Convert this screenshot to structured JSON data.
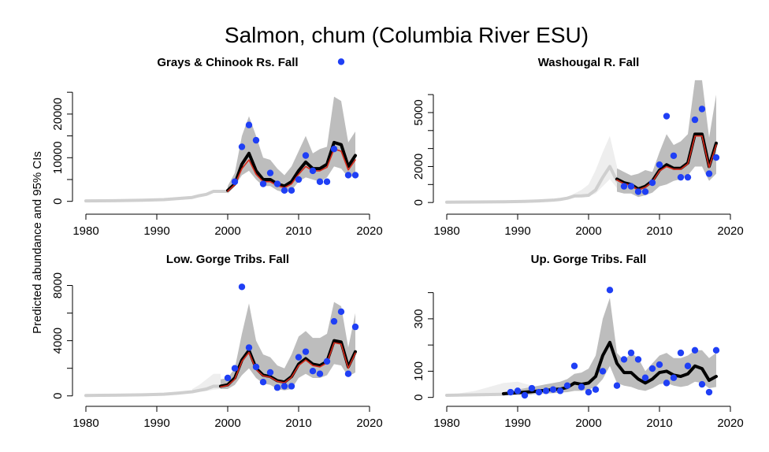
{
  "figure": {
    "title": "Salmon, chum (Columbia River ESU)",
    "ylabel": "Predicted abundance and 95% CIs"
  },
  "colors": {
    "hist_line": "#cfcfcf",
    "hist_band": "#eeeeee",
    "ci_band": "#bdbdbd",
    "estimate_line": "#000000",
    "fit_line": "#d62a1b",
    "observed_points": "#1f3ff5"
  },
  "chart_data": [
    {
      "type": "line",
      "title": "Grays & Chinook Rs. Fall",
      "xlabel": "",
      "ylabel": "",
      "xlim": [
        1979,
        2021
      ],
      "ylim": [
        -1500,
        29000
      ],
      "xticks": [
        1980,
        1990,
        2000,
        2010,
        2020
      ],
      "yticks": [
        0,
        5000,
        10000,
        15000,
        20000,
        25000
      ],
      "ytick_labels": [
        "0",
        "",
        "10000",
        "",
        "20000",
        ""
      ],
      "ytick_labels_alt": [
        "0",
        "5000",
        "10000",
        "15000",
        "20000",
        "25000"
      ],
      "historical_line": {
        "x": [
          1980,
          1984,
          1988,
          1991,
          1993,
          1995,
          1996,
          1997,
          1998,
          1999,
          2000
        ],
        "y": [
          100,
          150,
          250,
          400,
          650,
          900,
          1300,
          1600,
          2300,
          2300,
          2300
        ]
      },
      "historical_band": {
        "x": [],
        "lower": [],
        "upper": []
      },
      "ci_band": {
        "x": [
          2000,
          2001,
          2002,
          2003,
          2004,
          2005,
          2006,
          2007,
          2008,
          2009,
          2010,
          2011,
          2012,
          2013,
          2014,
          2015,
          2016,
          2017,
          2018
        ],
        "lower": [
          1800,
          3500,
          6000,
          7000,
          5000,
          3500,
          3500,
          2500,
          2000,
          2500,
          4500,
          5500,
          5000,
          4500,
          5500,
          8000,
          7500,
          5500,
          6000
        ],
        "upper": [
          3500,
          6500,
          15000,
          19500,
          15000,
          10000,
          9500,
          7500,
          6000,
          8000,
          11500,
          15000,
          11000,
          12000,
          12500,
          24000,
          23000,
          13500,
          16000
        ]
      },
      "estimate_line": {
        "x": [
          2000,
          2001,
          2002,
          2003,
          2004,
          2005,
          2006,
          2007,
          2008,
          2009,
          2010,
          2011,
          2012,
          2013,
          2014,
          2015,
          2016,
          2017,
          2018
        ],
        "y": [
          2500,
          4000,
          8500,
          11000,
          7000,
          5000,
          5000,
          4000,
          3500,
          4500,
          7000,
          9000,
          7500,
          7500,
          8500,
          13500,
          13000,
          8000,
          10500
        ]
      },
      "fit_line": {
        "x": [
          2000,
          2001,
          2002,
          2003,
          2004,
          2005,
          2006,
          2007,
          2008,
          2009,
          2010,
          2011,
          2012,
          2013,
          2014,
          2015,
          2016,
          2017,
          2018
        ],
        "y": [
          2300,
          3800,
          7500,
          9500,
          6200,
          4500,
          4500,
          3600,
          3100,
          4000,
          6200,
          8000,
          7000,
          7000,
          7800,
          12000,
          11500,
          7200,
          9500
        ]
      },
      "observed_points": {
        "x": [
          2001,
          2002,
          2003,
          2004,
          2005,
          2006,
          2007,
          2008,
          2009,
          2010,
          2011,
          2012,
          2013,
          2014,
          2015,
          2016,
          2017,
          2018
        ],
        "y": [
          4500,
          12500,
          17500,
          14000,
          4000,
          6500,
          4000,
          2500,
          2500,
          5000,
          10500,
          7000,
          4500,
          4500,
          12000,
          32000,
          6000,
          6000
        ]
      }
    },
    {
      "type": "line",
      "title": "Washougal R. Fall",
      "xlabel": "",
      "ylabel": "",
      "xlim": [
        1979,
        2021
      ],
      "ylim": [
        -300,
        7100
      ],
      "xticks": [
        1980,
        1990,
        2000,
        2010,
        2020
      ],
      "yticks": [
        0,
        1000,
        2000,
        3000,
        4000,
        5000,
        6000
      ],
      "ytick_labels": [
        "0",
        "",
        "2000",
        "",
        "",
        "5000",
        ""
      ],
      "historical_line": {
        "x": [
          1980,
          1984,
          1988,
          1991,
          1993,
          1995,
          1996,
          1997,
          1998,
          1999,
          2000,
          2001,
          2002,
          2003,
          2004
        ],
        "y": [
          20,
          30,
          40,
          60,
          90,
          130,
          170,
          240,
          360,
          370,
          400,
          700,
          1400,
          2000,
          1200
        ]
      },
      "historical_band": {
        "x": [
          1997,
          1998,
          1999,
          2000,
          2001,
          2002,
          2003,
          2004
        ],
        "lower": [
          200,
          300,
          300,
          350,
          500,
          900,
          1300,
          800
        ],
        "upper": [
          300,
          500,
          700,
          1000,
          1800,
          2800,
          3700,
          2000
        ]
      },
      "ci_band": {
        "x": [
          2004,
          2005,
          2006,
          2007,
          2008,
          2009,
          2010,
          2011,
          2012,
          2013,
          2014,
          2015,
          2016,
          2017,
          2018
        ],
        "lower": [
          600,
          500,
          500,
          300,
          400,
          550,
          900,
          1000,
          1200,
          1300,
          1500,
          2000,
          2000,
          1200,
          1600
        ],
        "upper": [
          1900,
          1700,
          1500,
          1600,
          1800,
          1700,
          2800,
          3800,
          3200,
          3400,
          3800,
          6800,
          6800,
          3600,
          6000
        ]
      },
      "estimate_line": {
        "x": [
          2004,
          2005,
          2006,
          2007,
          2008,
          2009,
          2010,
          2011,
          2012,
          2013,
          2014,
          2015,
          2016,
          2017,
          2018
        ],
        "y": [
          1300,
          1100,
          1000,
          750,
          900,
          1200,
          1800,
          2100,
          1900,
          1900,
          2200,
          3800,
          3800,
          2000,
          3300
        ]
      },
      "fit_line": {
        "x": [
          2004,
          2005,
          2006,
          2007,
          2008,
          2009,
          2010,
          2011,
          2012,
          2013,
          2014,
          2015,
          2016,
          2017,
          2018
        ],
        "y": [
          1250,
          1050,
          950,
          700,
          850,
          1150,
          1750,
          2000,
          1850,
          1850,
          2150,
          3700,
          3700,
          1950,
          3200
        ]
      },
      "observed_points": {
        "x": [
          2005,
          2006,
          2007,
          2008,
          2009,
          2010,
          2011,
          2012,
          2013,
          2014,
          2015,
          2016,
          2017,
          2018
        ],
        "y": [
          900,
          900,
          600,
          600,
          1100,
          2100,
          4800,
          2600,
          1400,
          1400,
          4600,
          5200,
          1600,
          2500
        ]
      }
    },
    {
      "type": "line",
      "title": "Low. Gorge Tribs. Fall",
      "xlabel": "",
      "ylabel": "",
      "xlim": [
        1979,
        2021
      ],
      "ylim": [
        -300,
        9000
      ],
      "xticks": [
        1980,
        1990,
        2000,
        2010,
        2020
      ],
      "yticks": [
        0,
        2000,
        4000,
        6000,
        8000
      ],
      "ytick_labels": [
        "0",
        "",
        "4000",
        "",
        "8000"
      ],
      "historical_line": {
        "x": [
          1980,
          1984,
          1988,
          1991,
          1993,
          1995,
          1996,
          1997,
          1998,
          1999
        ],
        "y": [
          30,
          50,
          80,
          120,
          200,
          300,
          400,
          500,
          700,
          700
        ]
      },
      "historical_band": {
        "x": [
          1995,
          1996,
          1997,
          1998,
          1999
        ],
        "lower": [
          250,
          300,
          350,
          450,
          500
        ],
        "upper": [
          500,
          800,
          1200,
          1600,
          1600
        ]
      },
      "ci_band": {
        "x": [
          1999,
          2000,
          2001,
          2002,
          2003,
          2004,
          2005,
          2006,
          2007,
          2008,
          2009,
          2010,
          2011,
          2012,
          2013,
          2014,
          2015,
          2016,
          2017,
          2018
        ],
        "lower": [
          500,
          500,
          800,
          1500,
          2000,
          1300,
          900,
          800,
          500,
          400,
          500,
          1300,
          1600,
          1300,
          1300,
          1500,
          2300,
          2200,
          1400,
          1700
        ],
        "upper": [
          1200,
          1300,
          2000,
          4500,
          6700,
          4000,
          3000,
          2800,
          2200,
          2000,
          3000,
          4300,
          4700,
          4200,
          4200,
          4500,
          6800,
          6500,
          3500,
          6000
        ]
      },
      "estimate_line": {
        "x": [
          1999,
          2000,
          2001,
          2002,
          2003,
          2004,
          2005,
          2006,
          2007,
          2008,
          2009,
          2010,
          2011,
          2012,
          2013,
          2014,
          2015,
          2016,
          2017,
          2018
        ],
        "y": [
          700,
          800,
          1300,
          2600,
          3300,
          2000,
          1500,
          1400,
          1100,
          1000,
          1400,
          2300,
          2700,
          2300,
          2200,
          2500,
          4000,
          3900,
          2100,
          3200
        ]
      },
      "fit_line": {
        "x": [
          1999,
          2000,
          2001,
          2002,
          2003,
          2004,
          2005,
          2006,
          2007,
          2008,
          2009,
          2010,
          2011,
          2012,
          2013,
          2014,
          2015,
          2016,
          2017,
          2018
        ],
        "y": [
          650,
          750,
          1200,
          2500,
          3150,
          1900,
          1450,
          1350,
          1050,
          950,
          1350,
          2200,
          2600,
          2200,
          2100,
          2400,
          3850,
          3750,
          2000,
          3100
        ]
      },
      "observed_points": {
        "x": [
          2000,
          2001,
          2002,
          2003,
          2004,
          2005,
          2006,
          2007,
          2008,
          2009,
          2010,
          2011,
          2012,
          2013,
          2014,
          2015,
          2016,
          2017,
          2018
        ],
        "y": [
          1300,
          2000,
          7900,
          3500,
          2100,
          1000,
          1700,
          600,
          700,
          700,
          2800,
          3200,
          1800,
          1600,
          2500,
          5400,
          6100,
          1600,
          5000
        ]
      }
    },
    {
      "type": "line",
      "title": "Up. Gorge Tribs. Fall",
      "xlabel": "",
      "ylabel": "",
      "xlim": [
        1979,
        2021
      ],
      "ylim": [
        -10,
        480
      ],
      "xticks": [
        1980,
        1990,
        2000,
        2010,
        2020
      ],
      "yticks": [
        0,
        100,
        200,
        300,
        400
      ],
      "ytick_labels": [
        "0",
        "100",
        "",
        "300",
        ""
      ],
      "historical_line": {
        "x": [
          1980,
          1984,
          1988
        ],
        "y": [
          8,
          10,
          12
        ]
      },
      "historical_band": {
        "x": [
          1980,
          1984,
          1988,
          1990,
          1992
        ],
        "lower": [
          5,
          6,
          8,
          8,
          8
        ],
        "upper": [
          8,
          25,
          55,
          60,
          45
        ]
      },
      "ci_band": {
        "x": [
          1988,
          1989,
          1990,
          1991,
          1992,
          1993,
          1994,
          1995,
          1996,
          1997,
          1998,
          1999,
          2000,
          2001,
          2002,
          2003,
          2004,
          2005,
          2006,
          2007,
          2008,
          2009,
          2010,
          2011,
          2012,
          2013,
          2014,
          2015,
          2016,
          2017,
          2018
        ],
        "lower": [
          8,
          10,
          10,
          10,
          12,
          14,
          15,
          16,
          18,
          20,
          25,
          25,
          30,
          40,
          70,
          120,
          55,
          45,
          40,
          30,
          25,
          35,
          50,
          55,
          45,
          40,
          45,
          60,
          55,
          35,
          40
        ],
        "upper": [
          20,
          25,
          30,
          35,
          40,
          45,
          50,
          55,
          60,
          70,
          90,
          95,
          110,
          160,
          300,
          380,
          170,
          140,
          170,
          150,
          100,
          130,
          160,
          170,
          150,
          150,
          160,
          180,
          180,
          150,
          170
        ]
      },
      "estimate_line": {
        "x": [
          1988,
          1989,
          1990,
          1991,
          1992,
          1993,
          1994,
          1995,
          1996,
          1997,
          1998,
          1999,
          2000,
          2001,
          2002,
          2003,
          2004,
          2005,
          2006,
          2007,
          2008,
          2009,
          2010,
          2011,
          2012,
          2013,
          2014,
          2015,
          2016,
          2017,
          2018
        ],
        "y": [
          14,
          16,
          18,
          20,
          22,
          25,
          27,
          30,
          32,
          38,
          55,
          50,
          55,
          80,
          160,
          210,
          130,
          95,
          95,
          70,
          55,
          70,
          95,
          100,
          85,
          80,
          90,
          120,
          110,
          65,
          80
        ]
      },
      "fit_line": {
        "x": [],
        "y": []
      },
      "observed_points": {
        "x": [
          1989,
          1990,
          1991,
          1992,
          1993,
          1994,
          1995,
          1996,
          1997,
          1998,
          1999,
          2000,
          2001,
          2002,
          2003,
          2004,
          2005,
          2006,
          2007,
          2008,
          2009,
          2010,
          2011,
          2012,
          2013,
          2014,
          2015,
          2016,
          2017,
          2018
        ],
        "y": [
          20,
          25,
          8,
          35,
          20,
          25,
          30,
          25,
          45,
          120,
          40,
          20,
          30,
          100,
          410,
          45,
          145,
          170,
          145,
          75,
          110,
          125,
          55,
          75,
          170,
          120,
          180,
          50,
          20,
          180
        ]
      }
    }
  ]
}
